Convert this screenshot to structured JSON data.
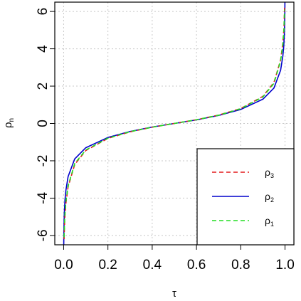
{
  "chart_data": {
    "type": "line",
    "xlabel": "τ",
    "ylabel": "ρ",
    "ylabel_sub": "n",
    "xlim": [
      -0.04,
      1.04
    ],
    "ylim": [
      -6.5,
      6.5
    ],
    "x_ticks": [
      "0.0",
      "0.2",
      "0.4",
      "0.6",
      "0.8",
      "1.0"
    ],
    "x_tick_values": [
      0,
      0.2,
      0.4,
      0.6,
      0.8,
      1.0
    ],
    "y_ticks": [
      "-6",
      "-4",
      "-2",
      "0",
      "2",
      "4",
      "6"
    ],
    "y_tick_values": [
      -6,
      -4,
      -2,
      0,
      2,
      4,
      6
    ],
    "grid": true,
    "legend_position": "bottom-right",
    "series": [
      {
        "name": "ρ",
        "sub": "3",
        "color": "#e41a1c",
        "dash": "dashed",
        "x": [
          0.002,
          0.005,
          0.01,
          0.02,
          0.05,
          0.1,
          0.2,
          0.3,
          0.4,
          0.5,
          0.6,
          0.7,
          0.8,
          0.9,
          0.95,
          0.98,
          0.99,
          0.995,
          0.998
        ],
        "y": [
          -6.2,
          -5.1,
          -4.3,
          -3.4,
          -2.2,
          -1.45,
          -0.8,
          -0.45,
          -0.2,
          0.0,
          0.2,
          0.45,
          0.8,
          1.45,
          2.2,
          3.4,
          4.3,
          5.1,
          6.2
        ]
      },
      {
        "name": "ρ",
        "sub": "2",
        "color": "#0000cc",
        "dash": "solid",
        "x": [
          0.0005,
          0.001,
          0.003,
          0.006,
          0.01,
          0.02,
          0.05,
          0.1,
          0.2,
          0.3,
          0.4,
          0.5,
          0.6,
          0.7,
          0.8,
          0.9,
          0.95,
          0.98,
          0.99,
          0.994,
          0.997,
          0.999,
          0.9995
        ],
        "y": [
          -6.5,
          -5.8,
          -4.8,
          -4.1,
          -3.6,
          -2.85,
          -1.9,
          -1.3,
          -0.75,
          -0.43,
          -0.19,
          0.0,
          0.19,
          0.43,
          0.75,
          1.3,
          1.9,
          2.85,
          3.6,
          4.1,
          4.8,
          5.8,
          6.5
        ]
      },
      {
        "name": "ρ",
        "sub": "1",
        "color": "#22dd22",
        "dash": "dashed",
        "x": [
          0.002,
          0.005,
          0.01,
          0.02,
          0.05,
          0.1,
          0.2,
          0.3,
          0.4,
          0.5,
          0.6,
          0.7,
          0.8,
          0.9,
          0.95,
          0.98,
          0.99,
          0.995,
          0.998
        ],
        "y": [
          -6.1,
          -5.0,
          -4.2,
          -3.35,
          -2.15,
          -1.42,
          -0.79,
          -0.44,
          -0.2,
          0.0,
          0.2,
          0.44,
          0.79,
          1.42,
          2.15,
          3.35,
          4.2,
          5.0,
          6.1
        ]
      }
    ]
  }
}
